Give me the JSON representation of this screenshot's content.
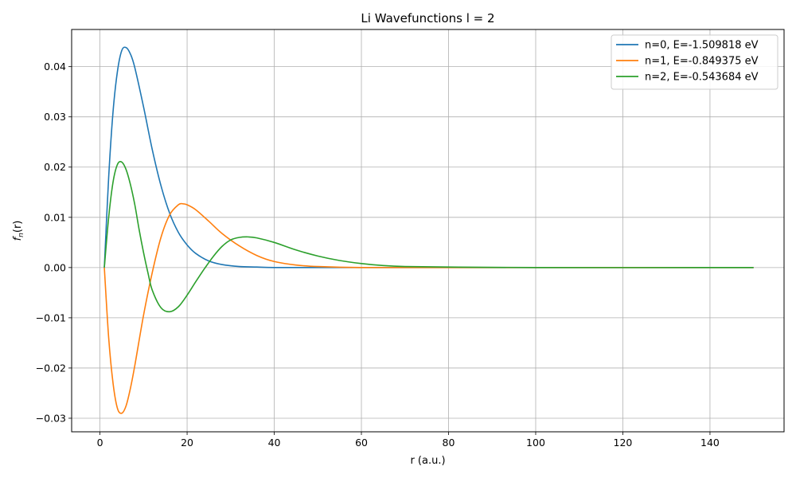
{
  "chart_data": {
    "type": "line",
    "title": "Li Wavefunctions l = 2",
    "xlabel": "r (a.u.)",
    "ylabel_main": "f",
    "ylabel_sub": "n",
    "ylabel_tail": "(r)",
    "xlim": [
      -6.5,
      157
    ],
    "ylim": [
      -0.0327,
      0.0474
    ],
    "xticks": [
      0,
      20,
      40,
      60,
      80,
      100,
      120,
      140
    ],
    "xtick_labels": [
      "0",
      "20",
      "40",
      "60",
      "80",
      "100",
      "120",
      "140"
    ],
    "yticks": [
      -0.03,
      -0.02,
      -0.01,
      0.0,
      0.01,
      0.02,
      0.03,
      0.04
    ],
    "ytick_labels": [
      "−0.03",
      "−0.02",
      "−0.01",
      "0.00",
      "0.01",
      "0.02",
      "0.03",
      "0.04"
    ],
    "grid": true,
    "legend_position": "top-right",
    "series": [
      {
        "name": "n=0, E=-1.509818 eV",
        "color": "#1f77b4",
        "x": [
          1,
          2,
          3,
          4,
          5,
          6,
          7,
          8,
          10,
          12,
          14,
          16,
          18,
          20,
          22,
          25,
          28,
          32,
          36,
          40,
          50,
          60,
          80,
          100,
          120,
          150
        ],
        "y": [
          0.0,
          0.018,
          0.031,
          0.039,
          0.0432,
          0.0438,
          0.0425,
          0.0398,
          0.032,
          0.0235,
          0.0163,
          0.0108,
          0.007,
          0.0045,
          0.0028,
          0.0013,
          0.0006,
          0.0002,
          0.0001,
          0.0,
          0.0,
          0.0,
          0.0,
          0.0,
          0.0,
          0.0
        ]
      },
      {
        "name": "n=1, E=-0.849375 eV",
        "color": "#ff7f0e",
        "x": [
          1,
          2,
          3,
          4,
          5,
          6,
          7,
          8,
          10,
          12,
          14,
          16,
          18,
          19,
          20,
          22,
          25,
          28,
          32,
          36,
          40,
          45,
          50,
          60,
          80,
          100,
          150
        ],
        "y": [
          0.0,
          -0.014,
          -0.023,
          -0.028,
          -0.029,
          -0.0275,
          -0.024,
          -0.0195,
          -0.0095,
          -0.001,
          0.006,
          0.0105,
          0.0125,
          0.0127,
          0.0125,
          0.0115,
          0.0092,
          0.0068,
          0.0043,
          0.0024,
          0.0012,
          0.0005,
          0.0002,
          0.0,
          0.0,
          0.0,
          0.0
        ]
      },
      {
        "name": "n=2, E=-0.543684 eV",
        "color": "#2ca02c",
        "x": [
          1,
          2,
          3,
          4,
          5,
          6,
          7,
          8,
          9,
          10,
          11,
          12,
          14,
          16,
          18,
          20,
          22,
          24,
          26,
          28,
          30,
          32,
          34,
          36,
          40,
          45,
          50,
          55,
          60,
          65,
          70,
          80,
          100,
          150
        ],
        "y": [
          0.0,
          0.01,
          0.017,
          0.0205,
          0.021,
          0.0195,
          0.0165,
          0.0125,
          0.0075,
          0.003,
          -0.001,
          -0.0045,
          -0.008,
          -0.0088,
          -0.0078,
          -0.0055,
          -0.0028,
          -0.0002,
          0.0022,
          0.0042,
          0.0055,
          0.006,
          0.0061,
          0.0059,
          0.005,
          0.0035,
          0.0023,
          0.0014,
          0.0008,
          0.0004,
          0.0002,
          0.0001,
          0.0,
          0.0
        ]
      }
    ]
  }
}
